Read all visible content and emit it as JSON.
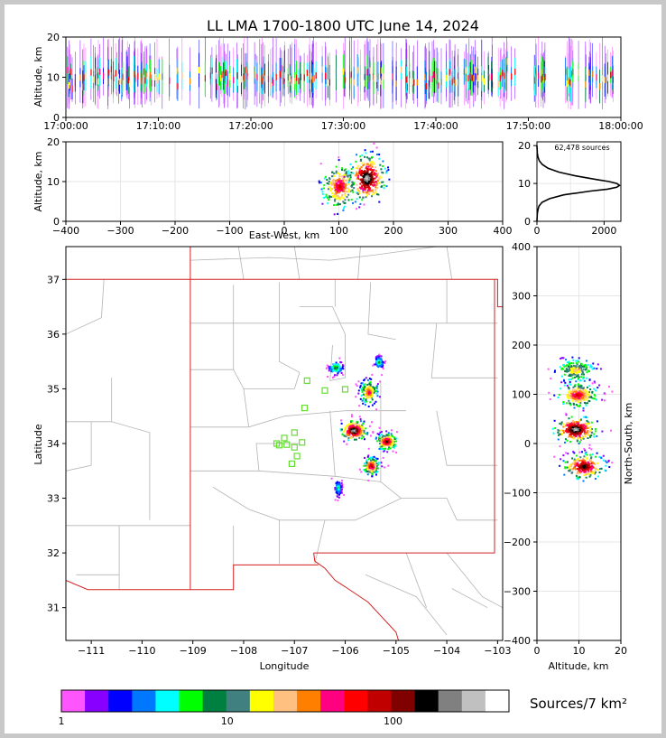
{
  "title": "LL LMA 1700-1800 UTC June 14, 2024",
  "colors": {
    "frame": "#c8c8c8",
    "state_border": "#d42020",
    "county_border": "#b4b4b4",
    "station": "#66dd33"
  },
  "chart_data": [
    {
      "id": "time-height",
      "type": "heatmap",
      "ylabel": "Altitude, km",
      "ylim": [
        0,
        20
      ],
      "yticks": [
        "0",
        "10",
        "20"
      ],
      "xlim_minutes": [
        0,
        60
      ],
      "xticks": [
        "17:00:00",
        "17:10:00",
        "17:20:00",
        "17:30:00",
        "17:40:00",
        "17:50:00",
        "18:00:00"
      ],
      "density_center_km": 10,
      "activity_gaps_minutes": [
        [
          49,
          50.5
        ],
        [
          52.5,
          54
        ]
      ]
    },
    {
      "id": "ew-altitude",
      "type": "heatmap",
      "xlabel": "East-West, km",
      "ylabel": "Altitude, km",
      "xlim": [
        -400,
        400
      ],
      "xticks": [
        "−400",
        "−300",
        "−200",
        "−100",
        "0",
        "100",
        "200",
        "300",
        "400"
      ],
      "ylim": [
        0,
        20
      ],
      "yticks": [
        "0",
        "10",
        "20"
      ],
      "cores": [
        {
          "x_km": 100,
          "alt_km": 9,
          "peak": 0.75
        },
        {
          "x_km": 150,
          "alt_km": 11,
          "peak": 1.0
        }
      ],
      "x_extent_km": [
        70,
        180
      ]
    },
    {
      "id": "altitude-histogram",
      "type": "line",
      "annotation": "62,478 sources",
      "xlim": [
        0,
        2500
      ],
      "xticks": [
        "0",
        "2000"
      ],
      "ylim": [
        0,
        21
      ],
      "yticks": [
        "0",
        "10",
        "20"
      ],
      "profile": [
        {
          "alt": 0.0,
          "count": 0
        },
        {
          "alt": 2.0,
          "count": 10
        },
        {
          "alt": 3.0,
          "count": 30
        },
        {
          "alt": 4.0,
          "count": 60
        },
        {
          "alt": 5.0,
          "count": 150
        },
        {
          "alt": 6.0,
          "count": 380
        },
        {
          "alt": 7.0,
          "count": 800
        },
        {
          "alt": 8.0,
          "count": 1600
        },
        {
          "alt": 8.5,
          "count": 2100
        },
        {
          "alt": 9.0,
          "count": 2380
        },
        {
          "alt": 9.5,
          "count": 2460
        },
        {
          "alt": 10.0,
          "count": 2380
        },
        {
          "alt": 10.5,
          "count": 2150
        },
        {
          "alt": 11.0,
          "count": 1800
        },
        {
          "alt": 12.0,
          "count": 1150
        },
        {
          "alt": 13.0,
          "count": 650
        },
        {
          "alt": 14.0,
          "count": 330
        },
        {
          "alt": 15.0,
          "count": 160
        },
        {
          "alt": 16.0,
          "count": 70
        },
        {
          "alt": 17.0,
          "count": 30
        },
        {
          "alt": 18.0,
          "count": 10
        },
        {
          "alt": 20.0,
          "count": 0
        }
      ]
    },
    {
      "id": "plan-view",
      "type": "heatmap",
      "xlabel": "Longitude",
      "ylabel": "Latitude",
      "xlim": [
        -111.5,
        -102.9
      ],
      "xticks": [
        "−111",
        "−110",
        "−109",
        "−108",
        "−107",
        "−106",
        "−105",
        "−104",
        "−103"
      ],
      "ylim": [
        30.4,
        37.6
      ],
      "yticks": [
        "31",
        "32",
        "33",
        "34",
        "35",
        "36",
        "37"
      ],
      "clusters": [
        {
          "lon": -105.85,
          "lat": 34.25,
          "peak": 1.0,
          "spread_lon": 0.22,
          "spread_lat": 0.16
        },
        {
          "lon": -105.2,
          "lat": 34.05,
          "peak": 0.85,
          "spread_lon": 0.18,
          "spread_lat": 0.13
        },
        {
          "lon": -105.55,
          "lat": 34.95,
          "peak": 0.7,
          "spread_lon": 0.15,
          "spread_lat": 0.2
        },
        {
          "lon": -105.5,
          "lat": 33.6,
          "peak": 0.8,
          "spread_lon": 0.14,
          "spread_lat": 0.14
        },
        {
          "lon": -106.2,
          "lat": 35.4,
          "peak": 0.4,
          "spread_lon": 0.12,
          "spread_lat": 0.1
        },
        {
          "lon": -106.15,
          "lat": 33.2,
          "peak": 0.3,
          "spread_lon": 0.06,
          "spread_lat": 0.15
        },
        {
          "lon": -105.35,
          "lat": 35.5,
          "peak": 0.35,
          "spread_lon": 0.08,
          "spread_lat": 0.1
        }
      ],
      "stations": [
        {
          "lon": -106.75,
          "lat": 35.15
        },
        {
          "lon": -106.4,
          "lat": 34.97
        },
        {
          "lon": -106.0,
          "lat": 34.99
        },
        {
          "lon": -106.8,
          "lat": 34.65
        },
        {
          "lon": -107.0,
          "lat": 34.2
        },
        {
          "lon": -107.2,
          "lat": 34.1
        },
        {
          "lon": -107.35,
          "lat": 34.0
        },
        {
          "lon": -107.15,
          "lat": 33.98
        },
        {
          "lon": -106.85,
          "lat": 34.02
        },
        {
          "lon": -107.0,
          "lat": 33.93
        },
        {
          "lon": -106.95,
          "lat": 33.77
        },
        {
          "lon": -107.05,
          "lat": 33.63
        },
        {
          "lon": -107.3,
          "lat": 33.97
        }
      ]
    },
    {
      "id": "ns-altitude",
      "type": "heatmap",
      "xlabel": "Altitude, km",
      "ylabel": "North-South, km",
      "xlim": [
        0,
        20
      ],
      "xticks": [
        "0",
        "10",
        "20"
      ],
      "ylim": [
        -400,
        400
      ],
      "yticks": [
        "−400",
        "−300",
        "−200",
        "−100",
        "0",
        "100",
        "200",
        "300",
        "400"
      ],
      "cores": [
        {
          "ns_km": 150,
          "alt_km": 9,
          "peak": 0.55
        },
        {
          "ns_km": 100,
          "alt_km": 9.5,
          "peak": 0.75
        },
        {
          "ns_km": 30,
          "alt_km": 9,
          "peak": 1.0
        },
        {
          "ns_km": -45,
          "alt_km": 11,
          "peak": 0.9
        }
      ]
    },
    {
      "id": "colorbar",
      "type": "heatmap",
      "label": "Sources/7 km²",
      "scale": "log",
      "range": [
        1,
        500
      ],
      "ticks": [
        {
          "value": 1,
          "label": "1"
        },
        {
          "value": 10,
          "label": "10"
        },
        {
          "value": 100,
          "label": "100"
        }
      ],
      "colors": [
        "#ff55ff",
        "#8800ff",
        "#0000ff",
        "#0077ff",
        "#00ffff",
        "#00ff00",
        "#008040",
        "#408080",
        "#ffff00",
        "#ffc080",
        "#ff8000",
        "#ff0080",
        "#ff0000",
        "#c00000",
        "#800000",
        "#000000",
        "#808080",
        "#c0c0c0",
        "#ffffff"
      ]
    }
  ]
}
